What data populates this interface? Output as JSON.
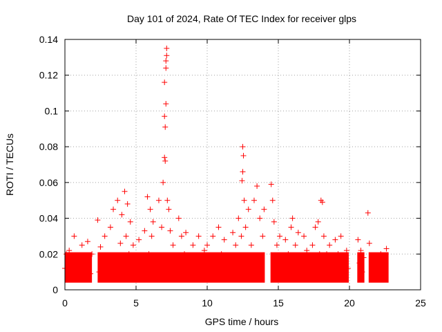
{
  "chart_data": {
    "type": "scatter",
    "title": "Day 101 of 2024, Rate Of TEC Index for receiver glps",
    "xlabel": "GPS time / hours",
    "ylabel": "ROTI / TECUs",
    "xlim": [
      0,
      25
    ],
    "ylim": [
      0,
      0.14
    ],
    "xticks": [
      0,
      5,
      10,
      15,
      20,
      25
    ],
    "xtick_labels": [
      "0",
      "5",
      "10",
      "15",
      "20",
      "25"
    ],
    "yticks": [
      0,
      0.02,
      0.04,
      0.06,
      0.08,
      0.1,
      0.12,
      0.14
    ],
    "ytick_labels": [
      "0",
      "0.02",
      "0.04",
      "0.06",
      "0.08",
      "0.1",
      "0.12",
      "0.14"
    ],
    "grid": true,
    "marker": "+",
    "color": "#ff0000",
    "series": [
      {
        "name": "ROTI",
        "x": [
          0.0,
          0.1,
          0.2,
          0.3,
          0.5,
          0.65,
          0.8,
          1.0,
          1.2,
          1.4,
          1.6,
          1.8,
          1.9,
          2.3,
          2.4,
          2.5,
          2.6,
          2.8,
          3.0,
          3.2,
          3.4,
          3.5,
          3.7,
          3.9,
          4.0,
          4.2,
          4.3,
          4.4,
          4.5,
          4.6,
          4.8,
          5.0,
          5.2,
          5.4,
          5.6,
          5.8,
          5.9,
          6.0,
          6.1,
          6.2,
          6.4,
          6.6,
          6.8,
          6.9,
          7.0,
          7.0,
          7.0,
          7.05,
          7.05,
          7.1,
          7.1,
          7.1,
          7.15,
          7.15,
          7.2,
          7.3,
          7.4,
          7.6,
          7.8,
          8.0,
          8.2,
          8.4,
          8.5,
          8.7,
          9.0,
          9.2,
          9.4,
          9.6,
          9.8,
          10.0,
          10.2,
          10.4,
          10.6,
          10.8,
          11.0,
          11.2,
          11.5,
          11.8,
          12.0,
          12.2,
          12.4,
          12.45,
          12.5,
          12.5,
          12.55,
          12.6,
          12.7,
          12.9,
          13.1,
          13.3,
          13.5,
          13.7,
          13.9,
          14.0,
          14.5,
          14.6,
          14.7,
          14.9,
          15.1,
          15.3,
          15.5,
          15.7,
          15.9,
          16.0,
          16.2,
          16.4,
          16.6,
          16.8,
          17.0,
          17.2,
          17.4,
          17.6,
          17.8,
          17.9,
          18.0,
          18.1,
          18.2,
          18.4,
          18.6,
          18.8,
          19.0,
          19.2,
          19.4,
          19.6,
          19.8,
          19.9,
          20.6,
          20.7,
          20.8,
          20.9,
          21.0,
          21.3,
          21.4,
          21.6,
          21.8,
          22.0,
          22.2,
          22.4,
          22.6
        ],
        "y": [
          0.012,
          0.02,
          0.008,
          0.022,
          0.015,
          0.03,
          0.01,
          0.018,
          0.025,
          0.012,
          0.027,
          0.009,
          0.02,
          0.039,
          0.01,
          0.024,
          0.015,
          0.03,
          0.011,
          0.035,
          0.045,
          0.018,
          0.05,
          0.026,
          0.042,
          0.055,
          0.03,
          0.048,
          0.02,
          0.038,
          0.025,
          0.015,
          0.028,
          0.012,
          0.033,
          0.052,
          0.02,
          0.045,
          0.03,
          0.038,
          0.018,
          0.05,
          0.035,
          0.06,
          0.074,
          0.097,
          0.116,
          0.072,
          0.091,
          0.104,
          0.124,
          0.128,
          0.131,
          0.135,
          0.05,
          0.045,
          0.033,
          0.025,
          0.018,
          0.04,
          0.03,
          0.02,
          0.032,
          0.015,
          0.025,
          0.012,
          0.03,
          0.018,
          0.022,
          0.025,
          0.015,
          0.03,
          0.018,
          0.035,
          0.02,
          0.028,
          0.012,
          0.032,
          0.025,
          0.04,
          0.03,
          0.061,
          0.066,
          0.08,
          0.075,
          0.05,
          0.035,
          0.045,
          0.025,
          0.05,
          0.058,
          0.04,
          0.03,
          0.045,
          0.059,
          0.05,
          0.038,
          0.025,
          0.03,
          0.015,
          0.028,
          0.02,
          0.035,
          0.04,
          0.025,
          0.032,
          0.018,
          0.03,
          0.022,
          0.015,
          0.025,
          0.035,
          0.038,
          0.02,
          0.05,
          0.049,
          0.03,
          0.02,
          0.025,
          0.015,
          0.028,
          0.02,
          0.03,
          0.015,
          0.022,
          0.012,
          0.028,
          0.015,
          0.022,
          0.01,
          0.018,
          0.043,
          0.026,
          0.012,
          0.018,
          0.015,
          0.02,
          0.012,
          0.023
        ]
      }
    ]
  }
}
